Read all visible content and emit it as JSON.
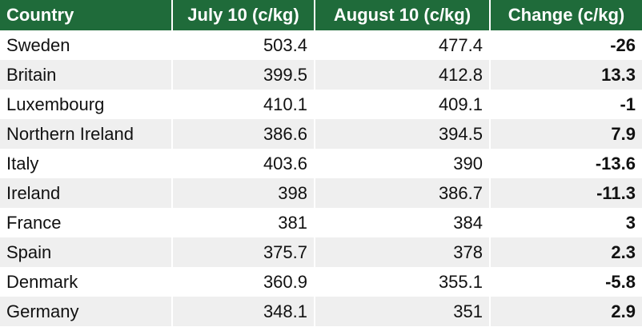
{
  "table": {
    "header": [
      "Country",
      "July 10 (c/kg)",
      "August 10 (c/kg)",
      "Change (c/kg)"
    ],
    "rows": [
      [
        "Sweden",
        503.4,
        477.4,
        -26
      ],
      [
        "Britain",
        399.5,
        412.8,
        13.3
      ],
      [
        "Luxembourg",
        410.1,
        409.1,
        -1
      ],
      [
        "Northern Ireland",
        386.6,
        394.5,
        7.9
      ],
      [
        "Italy",
        403.6,
        390,
        -13.6
      ],
      [
        "Ireland",
        398,
        386.7,
        -11.3
      ],
      [
        "France",
        381,
        384,
        3
      ],
      [
        "Spain",
        375.7,
        378,
        2.3
      ],
      [
        "Denmark",
        360.9,
        355.1,
        -5.8
      ],
      [
        "Germany",
        348.1,
        351,
        2.9
      ]
    ]
  }
}
